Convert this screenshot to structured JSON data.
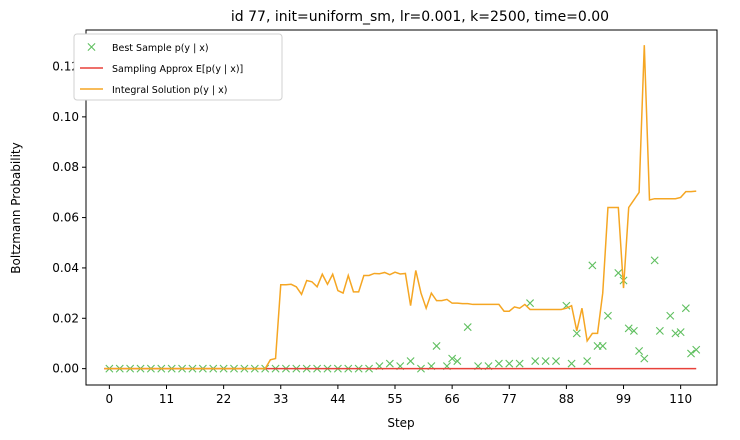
{
  "chart_data": {
    "type": "line",
    "title": "id 77, init=uniform_sm, lr=0.001, k=2500, time=0.00",
    "xlabel": "Step",
    "ylabel": "Boltzmann Probability",
    "xlim": [
      -4.5,
      117
    ],
    "ylim": [
      -0.0065,
      0.1345
    ],
    "xticks": [
      0,
      11,
      22,
      33,
      44,
      55,
      66,
      77,
      88,
      99,
      110
    ],
    "yticks": [
      0.0,
      0.02,
      0.04,
      0.06,
      0.08,
      0.1,
      0.12
    ],
    "ytick_labels": [
      "0.00",
      "0.02",
      "0.04",
      "0.06",
      "0.08",
      "0.10",
      "0.12"
    ],
    "grid": false,
    "legend_position": "top-left",
    "series": [
      {
        "name": "Best Sample p(y | x)",
        "kind": "scatter",
        "marker": "x",
        "color": "#5fbf5f",
        "x": [
          0,
          2,
          4,
          6,
          8,
          10,
          12,
          14,
          16,
          18,
          20,
          22,
          24,
          26,
          28,
          30,
          32,
          34,
          36,
          38,
          40,
          42,
          44,
          46,
          48,
          50,
          52,
          54,
          56,
          58,
          60,
          62,
          63,
          65,
          66,
          67,
          69,
          71,
          73,
          75,
          77,
          79,
          81,
          82,
          84,
          86,
          88,
          89,
          90,
          92,
          93,
          94,
          95,
          96,
          98,
          99,
          100,
          101,
          102,
          103,
          105,
          106,
          108,
          109,
          110,
          111,
          112,
          113
        ],
        "y": [
          0,
          0,
          0,
          0,
          0,
          0,
          0,
          0,
          0,
          0,
          0,
          0,
          0,
          0,
          0,
          0,
          0,
          0,
          0,
          0,
          0,
          0,
          0,
          0,
          0,
          0,
          0.001,
          0.002,
          0.001,
          0.003,
          0,
          0.001,
          0.009,
          0.001,
          0.004,
          0.003,
          0.0165,
          0.001,
          0.001,
          0.002,
          0.002,
          0.002,
          0.026,
          0.003,
          0.003,
          0.003,
          0.025,
          0.002,
          0.014,
          0.003,
          0.041,
          0.009,
          0.009,
          0.021,
          0.038,
          0.035,
          0.016,
          0.015,
          0.007,
          0.004,
          0.043,
          0.015,
          0.021,
          0.014,
          0.0145,
          0.024,
          0.006,
          0.0075
        ]
      },
      {
        "name": "Sampling Approx E[p(y | x)]",
        "kind": "line",
        "color": "#e8413a",
        "x": [
          -1,
          113
        ],
        "y": [
          0,
          0
        ]
      },
      {
        "name": "Integral Solution p(y | x)",
        "kind": "line",
        "color": "#f5a623",
        "x": [
          -1,
          10,
          20,
          30,
          31,
          32,
          33,
          34,
          35,
          36,
          37,
          38,
          39,
          40,
          41,
          42,
          43,
          44,
          45,
          46,
          47,
          48,
          49,
          50,
          51,
          52,
          53,
          54,
          55,
          56,
          57,
          58,
          59,
          60,
          61,
          62,
          63,
          64,
          65,
          66,
          67,
          68,
          69,
          70,
          71,
          72,
          73,
          74,
          75,
          76,
          77,
          78,
          79,
          80,
          81,
          82,
          83,
          84,
          85,
          86,
          87,
          88,
          89,
          90,
          91,
          92,
          93,
          94,
          95,
          96,
          97,
          98,
          99,
          100,
          101,
          102,
          103,
          104,
          105,
          106,
          107,
          108,
          109,
          110,
          111,
          112,
          113
        ],
        "y": [
          0,
          0,
          0,
          0,
          0.0035,
          0.004,
          0.0333,
          0.0333,
          0.0335,
          0.0325,
          0.0295,
          0.035,
          0.0345,
          0.0325,
          0.0375,
          0.0335,
          0.0375,
          0.031,
          0.03,
          0.037,
          0.0305,
          0.0305,
          0.037,
          0.037,
          0.0378,
          0.0377,
          0.0382,
          0.0373,
          0.0383,
          0.0376,
          0.0378,
          0.025,
          0.039,
          0.03,
          0.024,
          0.03,
          0.027,
          0.027,
          0.0275,
          0.026,
          0.026,
          0.0258,
          0.0258,
          0.0255,
          0.0255,
          0.0255,
          0.0255,
          0.0255,
          0.0255,
          0.0228,
          0.0228,
          0.0245,
          0.024,
          0.0255,
          0.0235,
          0.0235,
          0.0235,
          0.0235,
          0.0235,
          0.0235,
          0.0235,
          0.024,
          0.025,
          0.015,
          0.024,
          0.011,
          0.014,
          0.014,
          0.03,
          0.064,
          0.064,
          0.064,
          0.032,
          0.064,
          0.067,
          0.07,
          0.1285,
          0.067,
          0.0675,
          0.0675,
          0.0675,
          0.0675,
          0.0675,
          0.068,
          0.0703,
          0.0703,
          0.0705
        ]
      }
    ]
  },
  "legend": {
    "entries": [
      {
        "text": "Best Sample p(y | x)",
        "color": "#5fbf5f",
        "kind": "x"
      },
      {
        "text": "Sampling Approx E[p(y | x)]",
        "color": "#e8413a",
        "kind": "line"
      },
      {
        "text": "Integral Solution p(y | x)",
        "color": "#f5a623",
        "kind": "line"
      }
    ]
  }
}
